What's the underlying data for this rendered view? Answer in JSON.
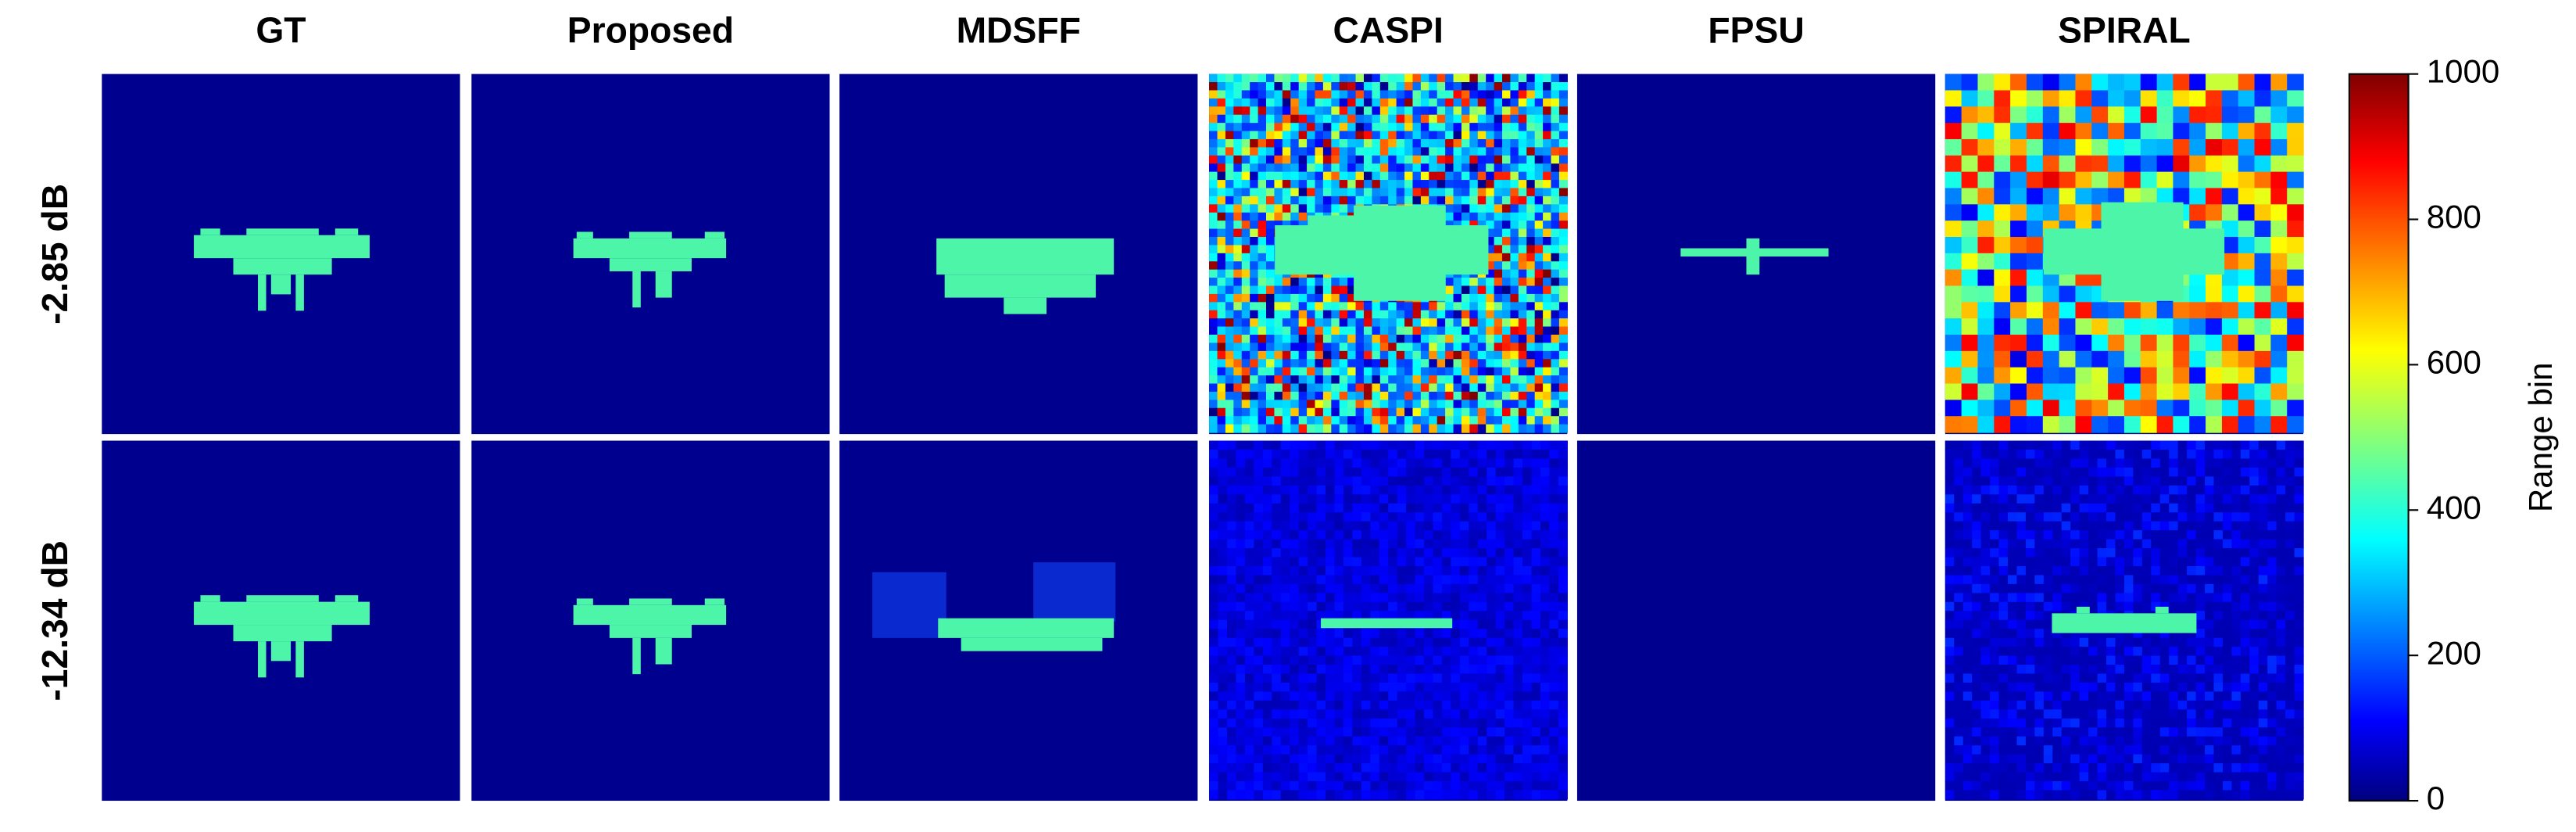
{
  "columns": [
    "GT",
    "Proposed",
    "MDSFF",
    "CASPI",
    "FPSU",
    "SPIRAL"
  ],
  "rows": [
    "-2.85 dB",
    "-12.34 dB"
  ],
  "colorbar": {
    "label": "Range bin",
    "lim": [
      0,
      1000
    ],
    "ticks": [
      0,
      200,
      400,
      600,
      800,
      1000
    ]
  }
}
